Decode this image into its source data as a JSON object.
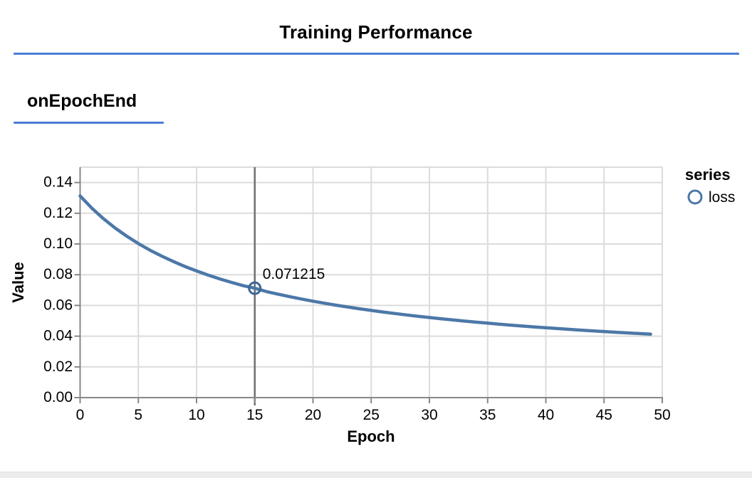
{
  "header": {
    "title": "Training Performance"
  },
  "section": {
    "label": "onEpochEnd"
  },
  "colors": {
    "accent": "#4a7dd2",
    "series_line": "#4c78a8",
    "marker_stroke": "#3d6697",
    "grid": "#dcdcdc",
    "axis": "#888888",
    "crosshair": "#6f6f6f",
    "bottom_bar": "#ececec"
  },
  "chart_data": {
    "type": "line",
    "title": "",
    "xlabel": "Epoch",
    "ylabel": "Value",
    "legend_title": "series",
    "legend_position": "right",
    "grid": true,
    "xlim": [
      0,
      50
    ],
    "ylim": [
      0,
      0.15
    ],
    "x_ticks": [
      0,
      5,
      10,
      15,
      20,
      25,
      30,
      35,
      40,
      45,
      50
    ],
    "y_ticks": [
      0,
      0.02,
      0.04,
      0.06,
      0.08,
      0.1,
      0.12,
      0.14
    ],
    "highlight": {
      "x": 15,
      "y": 0.071215,
      "label": "0.071215"
    },
    "series": [
      {
        "name": "loss",
        "color": "#4c78a8",
        "x": [
          0,
          1,
          2,
          3,
          4,
          5,
          6,
          7,
          8,
          9,
          10,
          11,
          12,
          13,
          14,
          15,
          16,
          17,
          18,
          19,
          20,
          21,
          22,
          23,
          24,
          25,
          26,
          27,
          28,
          29,
          30,
          31,
          32,
          33,
          34,
          35,
          36,
          37,
          38,
          39,
          40,
          41,
          42,
          43,
          44,
          45,
          46,
          47,
          48,
          49
        ],
        "y": [
          0.131315,
          0.123397,
          0.1165,
          0.110439,
          0.105071,
          0.100284,
          0.095987,
          0.09211,
          0.088593,
          0.085389,
          0.082457,
          0.079765,
          0.077284,
          0.074991,
          0.072864,
          0.071215,
          0.069042,
          0.06732,
          0.065706,
          0.064192,
          0.062769,
          0.061428,
          0.060162,
          0.058966,
          0.057833,
          0.05676,
          0.055741,
          0.054772,
          0.053849,
          0.052971,
          0.052132,
          0.051331,
          0.050566,
          0.049833,
          0.049132,
          0.048459,
          0.047813,
          0.047193,
          0.046597,
          0.046024,
          0.045472,
          0.04494,
          0.044428,
          0.043934,
          0.043457,
          0.042996,
          0.04255,
          0.04212,
          0.041703,
          0.0413
        ]
      }
    ]
  }
}
